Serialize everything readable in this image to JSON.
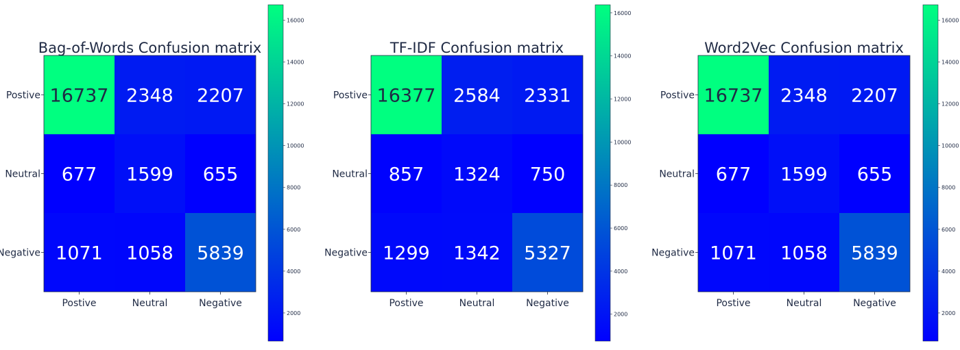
{
  "chart_data": [
    {
      "type": "heatmap",
      "title": "Bag-of-Words Confusion matrix",
      "rows": [
        "Postive",
        "Neutral",
        "Negative"
      ],
      "cols": [
        "Postive",
        "Neutral",
        "Negative"
      ],
      "values": [
        [
          16737,
          2348,
          2207
        ],
        [
          677,
          1599,
          655
        ],
        [
          1071,
          1058,
          5839
        ]
      ],
      "colormap": [
        "#0000ff",
        "#00ff80"
      ],
      "colorbar": {
        "range": [
          655,
          16737
        ],
        "ticks": [
          2000,
          4000,
          6000,
          8000,
          10000,
          12000,
          14000,
          16000
        ]
      }
    },
    {
      "type": "heatmap",
      "title": "TF-IDF Confusion matrix",
      "rows": [
        "Postive",
        "Neutral",
        "Negative"
      ],
      "cols": [
        "Postive",
        "Neutral",
        "Negative"
      ],
      "values": [
        [
          16377,
          2584,
          2331
        ],
        [
          857,
          1324,
          750
        ],
        [
          1299,
          1342,
          5327
        ]
      ],
      "colormap": [
        "#0000ff",
        "#00ff80"
      ],
      "colorbar": {
        "range": [
          750,
          16377
        ],
        "ticks": [
          2000,
          4000,
          6000,
          8000,
          10000,
          12000,
          14000,
          16000
        ]
      }
    },
    {
      "type": "heatmap",
      "title": "Word2Vec Confusion matrix",
      "rows": [
        "Postive",
        "Neutral",
        "Negative"
      ],
      "cols": [
        "Postive",
        "Neutral",
        "Negative"
      ],
      "values": [
        [
          16737,
          2348,
          2207
        ],
        [
          677,
          1599,
          655
        ],
        [
          1071,
          1058,
          5839
        ]
      ],
      "colormap": [
        "#0000ff",
        "#00ff80"
      ],
      "colorbar": {
        "range": [
          655,
          16737
        ],
        "ticks": [
          2000,
          4000,
          6000,
          8000,
          10000,
          12000,
          14000,
          16000
        ]
      }
    }
  ]
}
